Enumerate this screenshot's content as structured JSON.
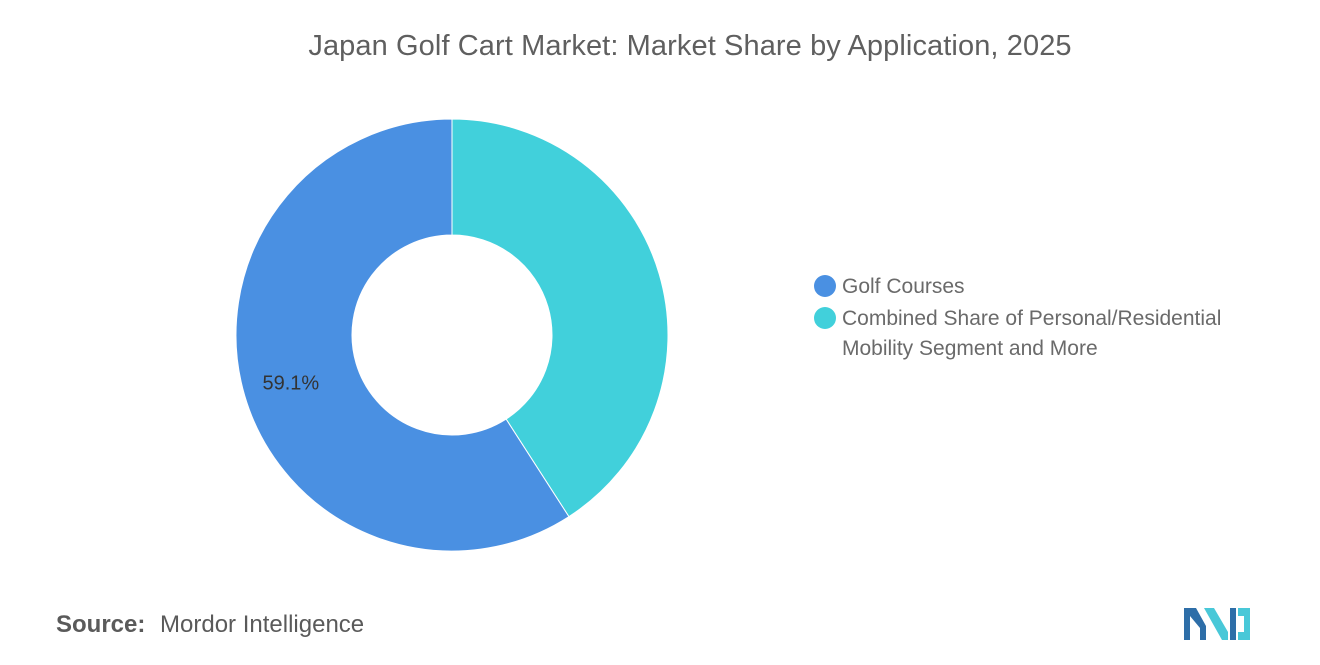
{
  "title": "Japan Golf Cart Market: Market Share by Application, 2025",
  "colors": {
    "golf_courses": "#4A90E2",
    "combined": "#41D0DB",
    "title_text": "#5f5f5f",
    "logo_dark": "#2E6EA8",
    "logo_light": "#49C8D8"
  },
  "chart_data": {
    "type": "pie",
    "variant": "donut",
    "title": "Japan Golf Cart Market: Market Share by Application, 2025",
    "unit": "%",
    "slices": [
      {
        "name": "Golf Courses",
        "value": 59.1,
        "label": "59.1%",
        "color": "#4A90E2"
      },
      {
        "name": "Combined Share of Personal/Residential Mobility Segment and More",
        "value": 40.9,
        "label": "",
        "color": "#41D0DB"
      }
    ],
    "legend_position": "right"
  },
  "legend": {
    "items": [
      {
        "label": "Golf Courses",
        "color": "#4A90E2"
      },
      {
        "label_line1": "Combined Share of Personal/Residential",
        "label_line2": "Mobility Segment and More",
        "color": "#41D0DB"
      }
    ]
  },
  "source": {
    "label": "Source:",
    "value": "Mordor Intelligence"
  },
  "logo": {
    "icon": "mordor-intelligence-logo-icon"
  }
}
